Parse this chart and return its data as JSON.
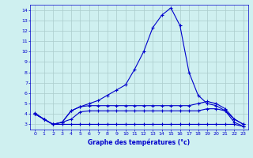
{
  "xlabel": "Graphe des températures (°c)",
  "background_color": "#cff0f0",
  "grid_color": "#aacccc",
  "line_color": "#0000cc",
  "xlim": [
    -0.5,
    23.5
  ],
  "ylim": [
    2.5,
    14.5
  ],
  "xticks": [
    0,
    1,
    2,
    3,
    4,
    5,
    6,
    7,
    8,
    9,
    10,
    11,
    12,
    13,
    14,
    15,
    16,
    17,
    18,
    19,
    20,
    21,
    22,
    23
  ],
  "yticks": [
    3,
    4,
    5,
    6,
    7,
    8,
    9,
    10,
    11,
    12,
    13,
    14
  ],
  "hours": [
    0,
    1,
    2,
    3,
    4,
    5,
    6,
    7,
    8,
    9,
    10,
    11,
    12,
    13,
    14,
    15,
    16,
    17,
    18,
    19,
    20,
    21,
    22,
    23
  ],
  "line_min": [
    4.0,
    3.5,
    3.0,
    3.0,
    3.0,
    3.0,
    3.0,
    3.0,
    3.0,
    3.0,
    3.0,
    3.0,
    3.0,
    3.0,
    3.0,
    3.0,
    3.0,
    3.0,
    3.0,
    3.0,
    3.0,
    3.0,
    3.0,
    2.8
  ],
  "line_low": [
    4.0,
    3.5,
    3.0,
    3.2,
    3.5,
    4.2,
    4.3,
    4.3,
    4.3,
    4.3,
    4.3,
    4.3,
    4.3,
    4.3,
    4.3,
    4.3,
    4.3,
    4.3,
    4.3,
    4.5,
    4.5,
    4.3,
    3.5,
    3.0
  ],
  "line_mid": [
    4.0,
    3.5,
    3.0,
    3.2,
    4.3,
    4.7,
    4.8,
    4.8,
    4.8,
    4.8,
    4.8,
    4.8,
    4.8,
    4.8,
    4.8,
    4.8,
    4.8,
    4.8,
    5.0,
    5.2,
    5.0,
    4.5,
    3.5,
    3.0
  ],
  "line_max": [
    4.1,
    3.5,
    3.0,
    3.2,
    4.3,
    4.7,
    5.0,
    5.3,
    5.8,
    6.3,
    6.8,
    8.3,
    10.0,
    12.3,
    13.5,
    14.2,
    12.5,
    8.0,
    5.8,
    5.0,
    4.8,
    4.3,
    3.2,
    2.8
  ]
}
